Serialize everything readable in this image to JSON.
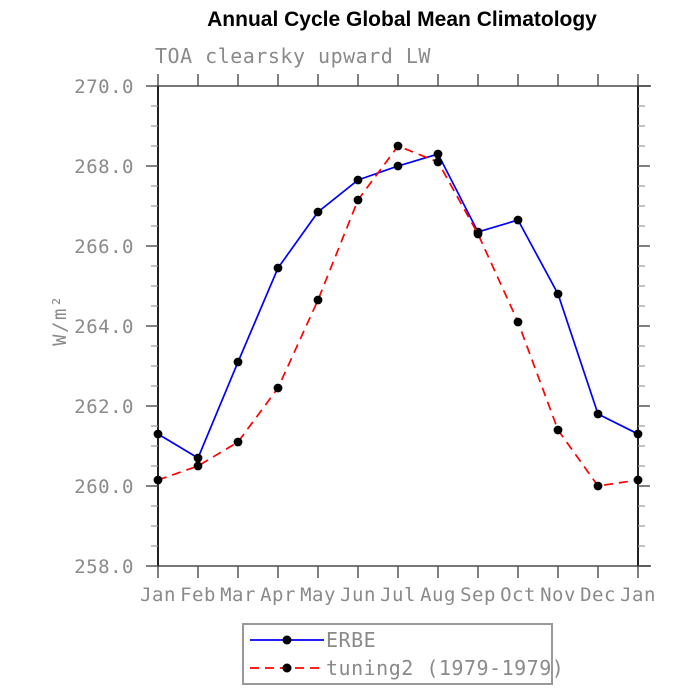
{
  "header": {
    "title": "Annual Cycle Global Mean Climatology",
    "subtitle": "TOA clearsky upward LW"
  },
  "axes": {
    "y_unit": "W/m²",
    "y_tick_labels": [
      "270.0",
      "268.0",
      "266.0",
      "264.0",
      "262.0",
      "260.0",
      "258.0"
    ],
    "y_minor_step": 0.5,
    "x_tick_labels": [
      "Jan",
      "Feb",
      "Mar",
      "Apr",
      "May",
      "Jun",
      "Jul",
      "Aug",
      "Sep",
      "Oct",
      "Nov",
      "Dec",
      "Jan"
    ]
  },
  "chart_data": {
    "type": "line",
    "title": "Annual Cycle Global Mean Climatology",
    "subtitle": "TOA clearsky upward LW",
    "xlabel": "",
    "ylabel": "W/m²",
    "ylim": [
      258.0,
      270.0
    ],
    "y_major_step": 2.0,
    "grid": false,
    "legend_position": "bottom-center",
    "categories": [
      "Jan",
      "Feb",
      "Mar",
      "Apr",
      "May",
      "Jun",
      "Jul",
      "Aug",
      "Sep",
      "Oct",
      "Nov",
      "Dec",
      "Jan"
    ],
    "series": [
      {
        "name": "ERBE",
        "color": "#0000ff",
        "line_style": "solid",
        "marker": "filled-circle",
        "marker_color": "#000000",
        "values": [
          261.3,
          260.7,
          263.1,
          265.45,
          266.85,
          267.65,
          268.0,
          268.3,
          266.35,
          266.65,
          264.8,
          261.8,
          261.3
        ]
      },
      {
        "name": "tuning2 (1979-1979)",
        "color": "#ff0000",
        "line_style": "dashed",
        "marker": "filled-circle",
        "marker_color": "#000000",
        "values": [
          260.15,
          260.5,
          261.1,
          262.45,
          264.65,
          267.15,
          268.5,
          268.1,
          266.3,
          264.1,
          261.4,
          260.0,
          260.15
        ]
      }
    ]
  },
  "colors": {
    "background": "#ffffff",
    "title_text": "#000000",
    "axis_text": "#8a8a8a",
    "frame_horizontal": "#777777",
    "frame_vertical": "#222222",
    "major_tick": "#555555",
    "minor_tick": "#999999",
    "legend_border": "#999999",
    "marker": "#000000"
  }
}
